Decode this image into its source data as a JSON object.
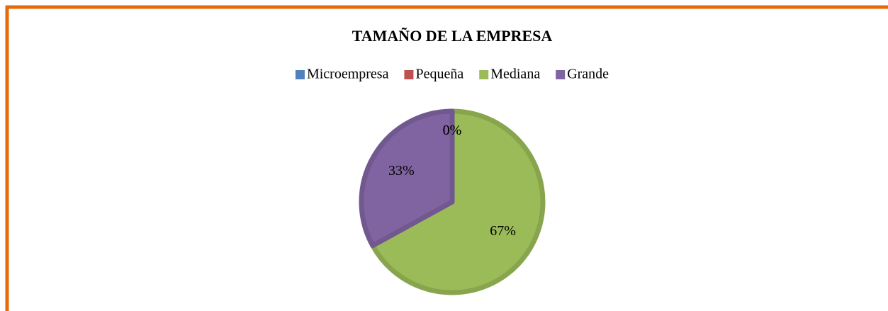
{
  "chart_data": {
    "type": "pie",
    "title": "TAMAÑO DE LA EMPRESA",
    "categories": [
      "Microempresa",
      "Pequeña",
      "Mediana",
      "Grande"
    ],
    "values": [
      0,
      0,
      67,
      33
    ],
    "value_labels": [
      "0%",
      "0%",
      "67%",
      "33%"
    ],
    "colors": [
      "#4f81bd",
      "#c0504d",
      "#9bbb59",
      "#8064a2"
    ],
    "legend": "top"
  }
}
